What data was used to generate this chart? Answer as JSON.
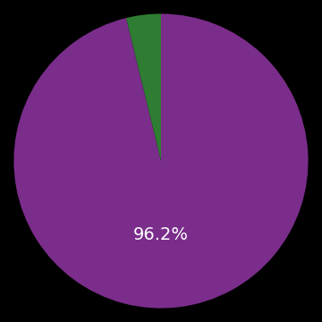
{
  "slices": [
    96.2,
    3.8
  ],
  "colors": [
    "#7b2d8b",
    "#2e7d32"
  ],
  "label_text": "96.2%",
  "label_color": "#ffffff",
  "label_fontsize": 14,
  "background_color": "#000000",
  "startangle": 90,
  "figsize": [
    3.6,
    3.6
  ],
  "dpi": 100
}
